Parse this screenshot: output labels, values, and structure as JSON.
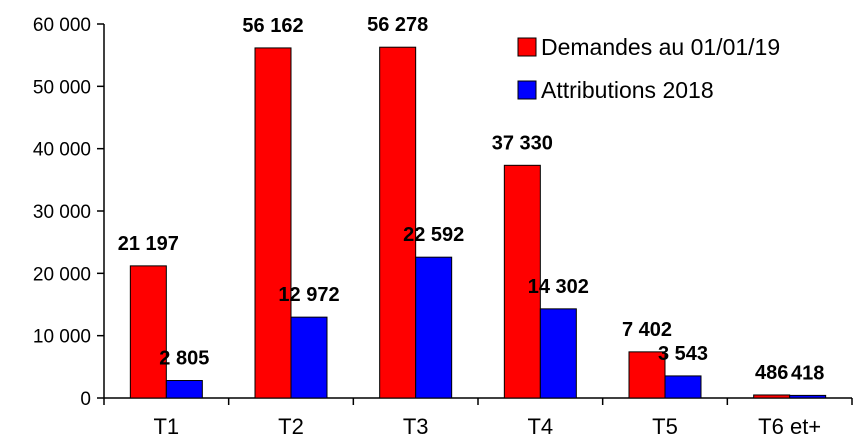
{
  "chart_data": {
    "type": "bar",
    "categories": [
      "T1",
      "T2",
      "T3",
      "T4",
      "T5",
      "T6 et+"
    ],
    "series": [
      {
        "name": "Demandes au 01/01/19",
        "color": "#ff0000",
        "values": [
          21197,
          56162,
          56278,
          37330,
          7402,
          486
        ],
        "labels": [
          "21 197",
          "56 162",
          "56 278",
          "37 330",
          "7 402",
          "486"
        ]
      },
      {
        "name": "Attributions 2018",
        "color": "#0000ff",
        "values": [
          2805,
          12972,
          22592,
          14302,
          3543,
          418
        ],
        "labels": [
          "2 805",
          "12 972",
          "22 592",
          "14 302",
          "3 543",
          "418"
        ]
      }
    ],
    "ylim": [
      0,
      60000
    ],
    "yticks": [
      0,
      10000,
      20000,
      30000,
      40000,
      50000,
      60000
    ],
    "ytick_labels": [
      "0",
      "10 000",
      "20 000",
      "30 000",
      "40 000",
      "50 000",
      "60 000"
    ],
    "grid": false,
    "legend_position": "top-right"
  }
}
